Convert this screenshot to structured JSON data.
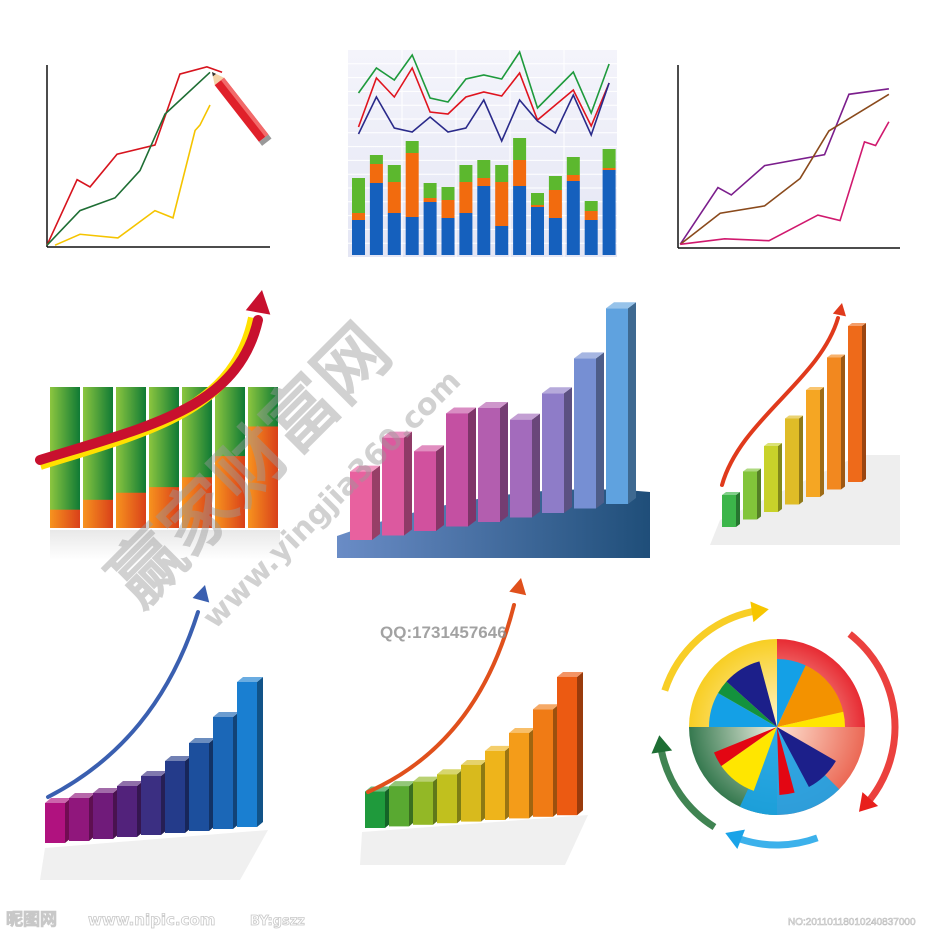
{
  "watermark": {
    "site_name": "赢家财富网",
    "url": "www.yingjia360.com",
    "qq": "QQ:1731457646"
  },
  "footer": {
    "logo": "昵图网",
    "url": "www.nipic.com",
    "author": "BY:gszz",
    "image_no": "NO:20110118010240837000"
  },
  "colors": {
    "red": "#d7141e",
    "green": "#1e8a3c",
    "yellow": "#f5c400",
    "blue": "#1560bd",
    "orange": "#f26b0e",
    "purple": "#7b1e8c",
    "brown": "#8a4a1c",
    "magenta": "#d0196e"
  },
  "chart_data": [
    {
      "type": "line",
      "panel": "top-left",
      "decoration": "red pencil drawing the line",
      "xlim": [
        0,
        100
      ],
      "ylim": [
        0,
        100
      ],
      "grid": false,
      "series": [
        {
          "color": "#d7141e",
          "x": [
            0,
            13.5,
            19.3,
            31.4,
            48.4,
            59.6,
            71.7,
            78.5
          ],
          "y": [
            1,
            37,
            33,
            51,
            56,
            95,
            99,
            96
          ]
        },
        {
          "color": "#1e6e34",
          "x": [
            0,
            14.8,
            30.5,
            41.7,
            52.9,
            73.1
          ],
          "y": [
            1,
            20,
            27,
            42,
            73,
            96
          ]
        },
        {
          "color": "#f5c400",
          "x": [
            3.6,
            14.8,
            31.8,
            48.4,
            56.5,
            66.4,
            68.6,
            73.1
          ],
          "y": [
            1,
            7,
            5,
            20,
            16,
            64,
            67,
            78
          ]
        }
      ]
    },
    {
      "type": "bar",
      "panel": "top-center",
      "stacked": true,
      "grid": true,
      "ylim": [
        0,
        205
      ],
      "bar_series": [
        {
          "color": "#1560bd",
          "values": [
            35,
            72,
            42,
            38,
            53,
            37,
            42,
            69,
            29,
            69,
            48,
            37,
            74,
            35,
            85
          ]
        },
        {
          "color": "#f26b0e",
          "values": [
            7,
            19,
            31,
            64,
            4,
            18,
            31,
            8,
            44,
            26,
            2,
            28,
            6,
            9,
            2
          ]
        },
        {
          "color": "#5cb82e",
          "values": [
            35,
            9,
            17,
            12,
            15,
            13,
            17,
            18,
            17,
            22,
            12,
            14,
            18,
            10,
            19
          ]
        }
      ],
      "line_series": [
        {
          "color": "#1e9a3c",
          "values": [
            162,
            187,
            175,
            200,
            157,
            153,
            176,
            180,
            176,
            203,
            147,
            165,
            183,
            142,
            191
          ]
        },
        {
          "color": "#e0141e",
          "values": [
            128,
            177,
            158,
            187,
            143,
            141,
            158,
            163,
            159,
            182,
            135,
            150,
            165,
            129,
            172
          ]
        },
        {
          "color": "#2a2a8a",
          "values": [
            121,
            158,
            127,
            123,
            138,
            123,
            127,
            155,
            114,
            155,
            134,
            122,
            160,
            120,
            172
          ]
        }
      ]
    },
    {
      "type": "line",
      "panel": "top-right",
      "xlim": [
        0,
        100
      ],
      "ylim": [
        0,
        100
      ],
      "grid": false,
      "series": [
        {
          "color": "#7b1e8c",
          "x": [
            1,
            18,
            24,
            39,
            66,
            77,
            95
          ],
          "y": [
            2,
            33,
            29,
            45,
            51,
            84,
            87
          ]
        },
        {
          "color": "#8a4a1c",
          "x": [
            1,
            19,
            39,
            55,
            68,
            95
          ],
          "y": [
            2,
            19,
            23,
            38,
            64,
            84
          ]
        },
        {
          "color": "#d0196e",
          "x": [
            1,
            21,
            41,
            63,
            73,
            84,
            89,
            95
          ],
          "y": [
            2,
            5,
            4,
            18,
            15,
            58,
            56,
            69
          ]
        }
      ]
    },
    {
      "type": "bar",
      "panel": "middle-left",
      "decoration": "rising red arrow",
      "description_values": "orange share of each green column (%)",
      "values": [
        13,
        20,
        25,
        29,
        36,
        51,
        72
      ]
    },
    {
      "type": "bar",
      "panel": "middle-center",
      "style": "3d",
      "values": [
        72,
        103,
        84,
        119,
        120,
        103,
        126,
        158,
        206
      ]
    },
    {
      "type": "bar",
      "panel": "middle-right",
      "style": "3d glass",
      "decoration": "rising red arrow",
      "values": [
        32,
        48,
        66,
        86,
        107,
        132,
        156
      ]
    },
    {
      "type": "bar",
      "panel": "bottom-left",
      "style": "3d",
      "decoration": "rising blue arrow",
      "values": [
        40,
        43,
        46,
        51,
        59,
        72,
        88,
        112,
        145
      ]
    },
    {
      "type": "bar",
      "panel": "bottom-center",
      "style": "3d",
      "decoration": "rising orange arrow",
      "values": [
        38,
        42,
        45,
        51,
        59,
        72,
        89,
        112,
        144
      ]
    },
    {
      "type": "pie",
      "panel": "bottom-right",
      "decoration": "four circular arrows (yellow, red, blue, green)",
      "outer_quadrants": [
        "#e8201c",
        "#1aa3e8",
        "#1e6e34",
        "#f7c600"
      ],
      "slices_deg": [
        {
          "color": "#14a0e6",
          "start": 0,
          "end": 25
        },
        {
          "color": "#f39200",
          "start": 25,
          "end": 77
        },
        {
          "color": "#ffe600",
          "start": 77,
          "end": 90
        },
        {
          "color": "#1c1f8a",
          "start": 120,
          "end": 152
        },
        {
          "color": "#e30613",
          "start": 165,
          "end": 178
        },
        {
          "color": "#ffe600",
          "start": 200,
          "end": 235
        },
        {
          "color": "#e30613",
          "start": 235,
          "end": 248
        },
        {
          "color": "#14a0e6",
          "start": 270,
          "end": 300
        },
        {
          "color": "#13923d",
          "start": 300,
          "end": 312
        },
        {
          "color": "#1c1f8a",
          "start": 312,
          "end": 345
        }
      ]
    }
  ]
}
